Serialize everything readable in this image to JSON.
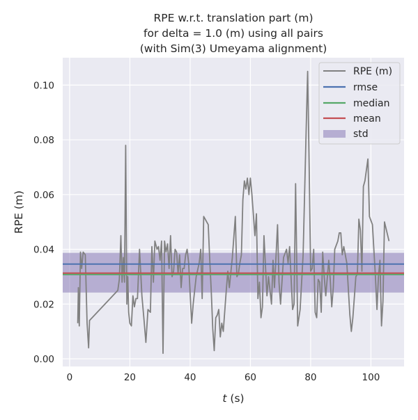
{
  "chart_data": {
    "type": "line",
    "title": [
      "RPE w.r.t. translation part (m)",
      "for delta = 1.0 (m) using all pairs",
      "(with Sim(3) Umeyama alignment)"
    ],
    "xlabel": "t (s)",
    "xlabel_var": "t",
    "xlabel_unit": " (s)",
    "ylabel": "RPE (m)",
    "xlim": [
      -2.3,
      111
    ],
    "ylim": [
      -0.0028,
      0.11
    ],
    "xticks": [
      0,
      20,
      40,
      60,
      80,
      100
    ],
    "xtick_labels": [
      "0",
      "20",
      "40",
      "60",
      "80",
      "100"
    ],
    "yticks": [
      0,
      0.02,
      0.04,
      0.06,
      0.08,
      0.1
    ],
    "ytick_labels": [
      "0.00",
      "0.02",
      "0.04",
      "0.06",
      "0.08",
      "0.10"
    ],
    "grid": true,
    "legend_position": "top-right",
    "legend": [
      "RPE (m)",
      "rmse",
      "median",
      "mean",
      "std"
    ],
    "colors": {
      "rpe": "#808080",
      "rmse": "#4c72b0",
      "median": "#55a868",
      "mean": "#c44e52",
      "std": "#8172b2",
      "bg": "#eaeaf2"
    },
    "stats": {
      "rmse": 0.0346,
      "median": 0.0308,
      "mean": 0.0313,
      "std_low": 0.0242,
      "std_high": 0.0387
    },
    "series": [
      {
        "name": "RPE (m)",
        "x": [
          2.7,
          2.9,
          3.2,
          3.6,
          4.0,
          4.5,
          5.2,
          5.8,
          6.3,
          6.6,
          16,
          16.5,
          17,
          17.4,
          17.8,
          18.2,
          18.6,
          19,
          19.3,
          19.6,
          20,
          20.5,
          21,
          21.5,
          22,
          22.5,
          23.2,
          24,
          24.7,
          25.3,
          26,
          26.8,
          27.3,
          27.8,
          28.3,
          29,
          29.5,
          30,
          30.5,
          31,
          31.5,
          32,
          32.5,
          33,
          33.5,
          34,
          34.5,
          35,
          35.5,
          36,
          36.5,
          37,
          37.5,
          38,
          38.5,
          39,
          39.5,
          40,
          40.5,
          41,
          42,
          43,
          43.5,
          44,
          44.5,
          46,
          46.5,
          47,
          47.5,
          48,
          48.5,
          49,
          49.5,
          50,
          50.5,
          51,
          52,
          52.5,
          53,
          54,
          55,
          55.5,
          56,
          56.5,
          57,
          57.5,
          58,
          58.5,
          59,
          59.5,
          60,
          60.5,
          61.5,
          62,
          62.5,
          63,
          63.5,
          64,
          64.5,
          65.5,
          66,
          67,
          67.5,
          68,
          69,
          69.5,
          70,
          71,
          72,
          72.5,
          73,
          74,
          74.5,
          75,
          75.7,
          76.5,
          77.5,
          78.5,
          79,
          79.5,
          80,
          80.5,
          81,
          81.5,
          82,
          82.5,
          83,
          83.5,
          84,
          84.5,
          85,
          86,
          86.5,
          87,
          87.5,
          88,
          89,
          89.5,
          90,
          90.5,
          91,
          92,
          93,
          93.5,
          94,
          95,
          95.5,
          96,
          96.5,
          97,
          97.5,
          98,
          99,
          99.5,
          100.5,
          101.5,
          102,
          102.5,
          103,
          103.5,
          104,
          104.5,
          106
        ],
        "y": [
          0.013,
          0.026,
          0.012,
          0.039,
          0.033,
          0.039,
          0.038,
          0.013,
          0.004,
          0.014,
          0.025,
          0.029,
          0.045,
          0.028,
          0.037,
          0.028,
          0.078,
          0.02,
          0.03,
          0.017,
          0.013,
          0.012,
          0.023,
          0.019,
          0.022,
          0.022,
          0.04,
          0.023,
          0.014,
          0.006,
          0.018,
          0.017,
          0.041,
          0.028,
          0.043,
          0.04,
          0.041,
          0.036,
          0.043,
          0.002,
          0.043,
          0.039,
          0.042,
          0.033,
          0.045,
          0.03,
          0.032,
          0.04,
          0.039,
          0.031,
          0.038,
          0.026,
          0.033,
          0.033,
          0.038,
          0.04,
          0.035,
          0.024,
          0.013,
          0.02,
          0.03,
          0.035,
          0.04,
          0.022,
          0.052,
          0.049,
          0.036,
          0.025,
          0.011,
          0.003,
          0.015,
          0.016,
          0.018,
          0.008,
          0.013,
          0.01,
          0.025,
          0.032,
          0.026,
          0.037,
          0.052,
          0.03,
          0.031,
          0.035,
          0.038,
          0.058,
          0.065,
          0.062,
          0.066,
          0.06,
          0.066,
          0.06,
          0.045,
          0.053,
          0.022,
          0.028,
          0.015,
          0.019,
          0.045,
          0.023,
          0.03,
          0.02,
          0.036,
          0.026,
          0.049,
          0.028,
          0.02,
          0.037,
          0.04,
          0.035,
          0.041,
          0.018,
          0.02,
          0.064,
          0.012,
          0.018,
          0.038,
          0.083,
          0.105,
          0.07,
          0.032,
          0.033,
          0.04,
          0.017,
          0.015,
          0.029,
          0.028,
          0.017,
          0.039,
          0.03,
          0.023,
          0.036,
          0.029,
          0.019,
          0.026,
          0.04,
          0.043,
          0.046,
          0.046,
          0.038,
          0.041,
          0.035,
          0.016,
          0.01,
          0.015,
          0.03,
          0.031,
          0.051,
          0.047,
          0.032,
          0.063,
          0.065,
          0.073,
          0.052,
          0.049,
          0.03,
          0.018,
          0.03,
          0.036,
          0.012,
          0.021,
          0.05,
          0.043
        ]
      }
    ]
  }
}
